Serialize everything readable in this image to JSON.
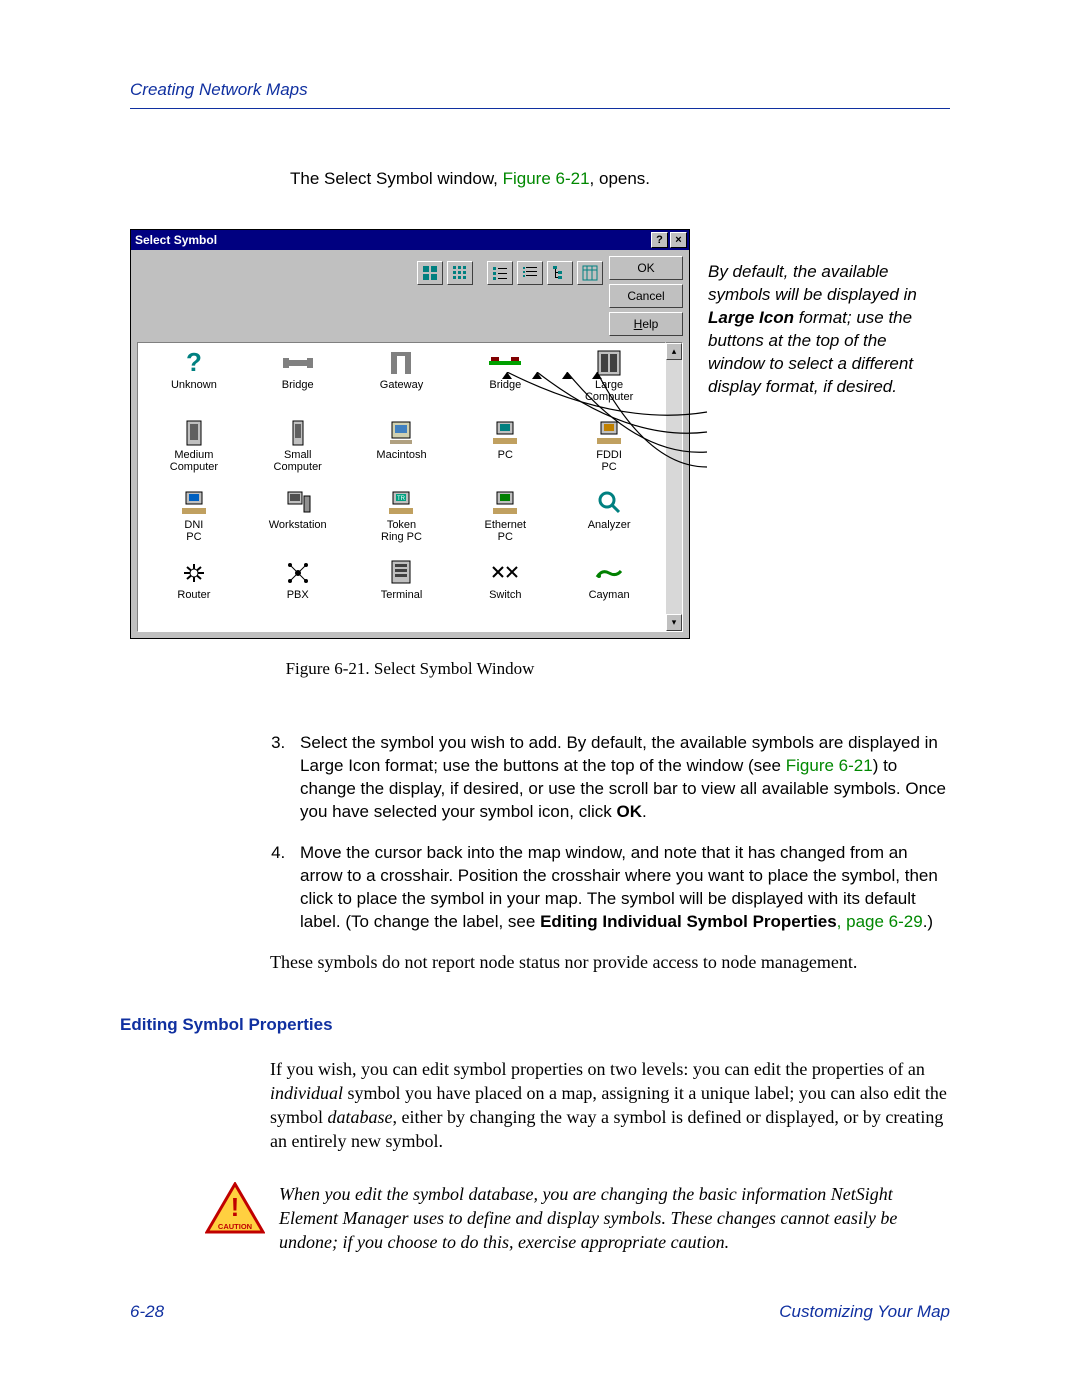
{
  "header": {
    "title": "Creating Network Maps"
  },
  "intro": {
    "prefix": "The Select Symbol window, ",
    "figref": "Figure 6-21",
    "suffix": ", opens."
  },
  "dialog": {
    "title": "Select Symbol",
    "help_glyph": "?",
    "close_glyph": "×",
    "buttons": {
      "ok": "OK",
      "cancel": "Cancel",
      "help": "Help"
    },
    "toolbar": [
      {
        "name": "large-icons-icon"
      },
      {
        "name": "small-icons-icon"
      },
      {
        "name": "list-icon"
      },
      {
        "name": "details-icon"
      },
      {
        "name": "tree-icon"
      },
      {
        "name": "columns-icon"
      }
    ],
    "symbols": [
      {
        "label": "Unknown",
        "icon": "question"
      },
      {
        "label": "Bridge",
        "icon": "bridge1"
      },
      {
        "label": "Gateway",
        "icon": "gateway"
      },
      {
        "label": "Bridge",
        "icon": "bridge2"
      },
      {
        "label": "Large Computer",
        "icon": "large-computer"
      },
      {
        "label": "Medium Computer",
        "icon": "medium-computer"
      },
      {
        "label": "Small Computer",
        "icon": "small-computer"
      },
      {
        "label": "Macintosh",
        "icon": "mac"
      },
      {
        "label": "PC",
        "icon": "pc"
      },
      {
        "label": "FDDI PC",
        "icon": "fddipc"
      },
      {
        "label": "DNI PC",
        "icon": "dnipc"
      },
      {
        "label": "Workstation",
        "icon": "workstation"
      },
      {
        "label": "Token Ring PC",
        "icon": "tokenring"
      },
      {
        "label": "Ethernet PC",
        "icon": "ethernetpc"
      },
      {
        "label": "Analyzer",
        "icon": "analyzer"
      },
      {
        "label": "Router",
        "icon": "router"
      },
      {
        "label": "PBX",
        "icon": "pbx"
      },
      {
        "label": "Terminal",
        "icon": "terminal"
      },
      {
        "label": "Switch",
        "icon": "switch"
      },
      {
        "label": "Cayman",
        "icon": "cayman"
      }
    ]
  },
  "side_note": {
    "p1a": "By default, the available symbols will be displayed in ",
    "bold1": "Large Icon",
    "p1b": " format; use the buttons at the top of the window to select a different display format, if desired."
  },
  "caption": "Figure 6-21.  Select Symbol Window",
  "step3": {
    "a": "Select the symbol you wish to add. By default, the available symbols are displayed in Large Icon format; use the buttons at the top of the window (see ",
    "figref": "Figure 6-21",
    "b": ") to change the display, if desired, or use the scroll bar to view all available symbols. Once you have selected your symbol icon, click ",
    "bold": "OK",
    "c": "."
  },
  "step4": {
    "a": "Move the cursor back into the map window, and note that it has changed from an arrow to a crosshair. Position the crosshair where you want to place the symbol, then click to place the symbol in your map. The symbol will be displayed with its default label. (To change the label, see ",
    "bold": "Editing Individual Symbol Properties",
    "pageref": ", page 6-29",
    "c": ".)"
  },
  "note": "These symbols do not report node status nor provide access to node management.",
  "section": "Editing Symbol Properties",
  "para": {
    "a": "If you wish, you can edit symbol properties on two levels: you can edit the properties of an ",
    "i1": "individual",
    "b": " symbol you have placed on a map, assigning it a unique label; you can also edit the symbol ",
    "i2": "database",
    "c": ", either by changing the way a symbol is defined or displayed, or by creating an entirely new symbol."
  },
  "caution": {
    "label": "CAUTION",
    "text": "When you edit the symbol database, you are changing the basic information NetSight Element Manager uses to define and display symbols. These changes cannot easily be undone; if you choose to do this, exercise appropriate caution."
  },
  "footer": {
    "page": "6-28",
    "section": "Customizing Your Map"
  },
  "colors": {
    "header": "#1030a0",
    "link": "#008800",
    "titlebar": "#000080",
    "dialog_bg": "#c0c0c0"
  }
}
